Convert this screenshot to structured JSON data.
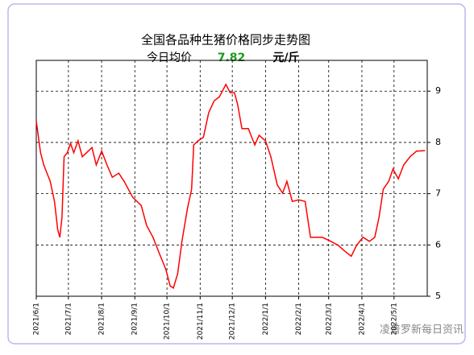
{
  "chart_data": {
    "type": "line",
    "title": "全国各品种生猪价格同步走势图",
    "subtitle_label": "今日均价",
    "today_value": 7.82,
    "unit": "元/斤",
    "watermark": "凌普罗新每日资讯",
    "x": [
      "2021/6/1",
      "2021/6/5",
      "2021/6/8",
      "2021/6/14",
      "2021/6/18",
      "2021/6/21",
      "2021/6/23",
      "2021/6/25",
      "2021/6/27",
      "2021/6/30",
      "2021/7/3",
      "2021/7/6",
      "2021/7/10",
      "2021/7/14",
      "2021/7/23",
      "2021/7/27",
      "2021/8/1",
      "2021/8/6",
      "2021/8/11",
      "2021/8/17",
      "2021/8/22",
      "2021/8/30",
      "2021/9/7",
      "2021/9/12",
      "2021/9/18",
      "2021/9/24",
      "2021/9/30",
      "2021/10/4",
      "2021/10/7",
      "2021/10/11",
      "2021/10/15",
      "2021/10/20",
      "2021/10/24",
      "2021/10/26",
      "2021/10/30",
      "2021/11/4",
      "2021/11/9",
      "2021/11/14",
      "2021/11/19",
      "2021/11/25",
      "2021/11/29",
      "2021/12/3",
      "2021/12/6",
      "2021/12/10",
      "2021/12/16",
      "2021/12/22",
      "2021/12/26",
      "2022/1/1",
      "2022/1/6",
      "2022/1/12",
      "2022/1/17",
      "2022/1/21",
      "2022/1/26",
      "2022/2/1",
      "2022/2/7",
      "2022/2/12",
      "2022/2/17",
      "2022/2/23",
      "2022/3/3",
      "2022/3/10",
      "2022/3/16",
      "2022/3/22",
      "2022/3/27",
      "2022/4/2",
      "2022/4/8",
      "2022/4/13",
      "2022/4/17",
      "2022/4/21",
      "2022/4/26",
      "2022/4/30",
      "2022/5/5",
      "2022/5/10",
      "2022/5/16",
      "2022/5/22",
      "2022/5/30"
    ],
    "series": [
      {
        "name": "均价",
        "color": "#ff0000",
        "values": [
          8.42,
          7.8,
          7.56,
          7.24,
          6.85,
          6.3,
          6.15,
          6.54,
          7.72,
          7.8,
          7.98,
          7.8,
          8.03,
          7.72,
          7.9,
          7.56,
          7.83,
          7.56,
          7.32,
          7.4,
          7.24,
          6.93,
          6.77,
          6.38,
          6.15,
          5.83,
          5.52,
          5.2,
          5.16,
          5.44,
          6.07,
          6.7,
          7.09,
          7.95,
          8.03,
          8.1,
          8.58,
          8.81,
          8.89,
          9.13,
          8.97,
          8.97,
          8.74,
          8.27,
          8.27,
          7.95,
          8.14,
          8.03,
          7.72,
          7.17,
          7.01,
          7.24,
          6.85,
          6.88,
          6.85,
          6.15,
          6.15,
          6.15,
          6.07,
          5.99,
          5.88,
          5.78,
          5.99,
          6.15,
          6.07,
          6.15,
          6.54,
          7.09,
          7.24,
          7.48,
          7.29,
          7.56,
          7.72,
          7.83,
          7.84
        ]
      }
    ],
    "xlim": [
      "2021/6/1",
      "2022/6/1"
    ],
    "xticks": [
      "2021/6/1",
      "2021/7/1",
      "2021/8/1",
      "2021/9/1",
      "2021/10/1",
      "2021/11/1",
      "2021/12/1",
      "2022/1/1",
      "2022/2/1",
      "2022/3/1",
      "2022/4/1",
      "2022/5/1"
    ],
    "ylim": [
      5,
      9.6
    ],
    "yticks": [
      5,
      6,
      7,
      8,
      9
    ],
    "grid": true
  }
}
